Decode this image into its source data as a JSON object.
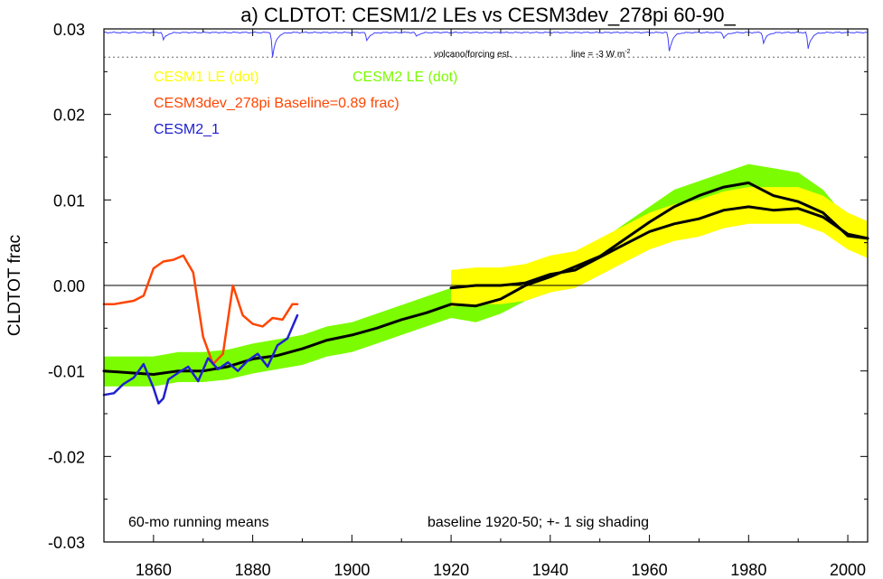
{
  "chart_data": {
    "type": "line",
    "title": "a) CLDTOT: CESM1/2 LEs vs CESM3dev_278pi 60-90_",
    "ylabel": "CLDTOT frac",
    "xlim": [
      1850,
      2004
    ],
    "ylim": [
      -0.03,
      0.03
    ],
    "xticks": [
      1860,
      1880,
      1900,
      1920,
      1940,
      1960,
      1980,
      2000
    ],
    "yticks": [
      -0.03,
      -0.02,
      -0.01,
      0.0,
      0.01,
      0.02,
      0.03
    ],
    "ytick_labels": [
      "-0.03",
      "-0.02",
      "-0.01",
      "0.00",
      "0.01",
      "0.02",
      "0.03"
    ],
    "legend": {
      "cesm1": "CESM1 LE (dot)",
      "cesm2": "CESM2 LE (dot)",
      "cesm3": "CESM3dev_278pi Baseline=0.89 frac)",
      "cesm21": "CESM2_1"
    },
    "annotations": {
      "volcano": "volcano/forcing est.",
      "line_label": "line = -3 W m",
      "line_sup": "-2",
      "running": "60-mo running means",
      "baseline": "baseline 1920-50; +- 1 sig shading"
    },
    "colors": {
      "cesm1": "#ffff00",
      "cesm2": "#7cfc00",
      "cesm3": "#ff4500",
      "cesm21": "#2020d0",
      "mean": "#000000",
      "volcano": "#4040ff"
    },
    "volcano_reference_y": 0.0267,
    "volcano_events": [
      [
        1862,
        0.9
      ],
      [
        1884,
        3.0
      ],
      [
        1903,
        1.0
      ],
      [
        1913,
        0.5
      ],
      [
        1964,
        2.3
      ],
      [
        1975,
        0.7
      ],
      [
        1983,
        1.3
      ],
      [
        1992,
        2.0
      ]
    ],
    "series": [
      {
        "name": "CESM2 LE",
        "kind": "band",
        "x": [
          1850,
          1855,
          1860,
          1865,
          1870,
          1875,
          1880,
          1885,
          1890,
          1895,
          1900,
          1905,
          1910,
          1915,
          1920,
          1925,
          1930,
          1935,
          1940,
          1945,
          1950,
          1955,
          1960,
          1965,
          1970,
          1975,
          1980,
          1985,
          1990,
          1995,
          2000,
          2004
        ],
        "lower": [
          -0.0118,
          -0.0118,
          -0.0118,
          -0.0113,
          -0.0113,
          -0.011,
          -0.0103,
          -0.0098,
          -0.0093,
          -0.0083,
          -0.0078,
          -0.0068,
          -0.0058,
          -0.0048,
          -0.0038,
          -0.0043,
          -0.0033,
          -0.0018,
          -0.0008,
          0.0002,
          0.0017,
          0.0037,
          0.0057,
          0.0077,
          0.0087,
          0.0097,
          0.0107,
          0.0102,
          0.0097,
          0.0077,
          0.0042,
          0.0037
        ],
        "upper": [
          -0.0083,
          -0.0083,
          -0.0083,
          -0.0078,
          -0.0078,
          -0.0075,
          -0.0068,
          -0.0063,
          -0.0058,
          -0.0048,
          -0.0043,
          -0.0033,
          -0.0023,
          -0.0013,
          -0.0003,
          -0.0008,
          0.0002,
          0.0017,
          0.0027,
          0.0037,
          0.0052,
          0.0072,
          0.0092,
          0.0112,
          0.0122,
          0.0132,
          0.0142,
          0.0137,
          0.0132,
          0.0112,
          0.0077,
          0.0072
        ]
      },
      {
        "name": "CESM1 LE",
        "kind": "band",
        "x": [
          1920,
          1925,
          1930,
          1935,
          1940,
          1945,
          1950,
          1955,
          1960,
          1965,
          1970,
          1975,
          1980,
          1985,
          1990,
          1995,
          2000,
          2004
        ],
        "lower": [
          -0.0025,
          -0.0022,
          -0.0022,
          -0.0018,
          -0.0008,
          -0.0003,
          0.0012,
          0.0027,
          0.0042,
          0.0052,
          0.0057,
          0.0067,
          0.0072,
          0.0072,
          0.0072,
          0.0062,
          0.0042,
          0.0032
        ],
        "upper": [
          0.0018,
          0.0021,
          0.0021,
          0.0025,
          0.0035,
          0.004,
          0.0055,
          0.007,
          0.0085,
          0.0095,
          0.01,
          0.011,
          0.0115,
          0.0115,
          0.0115,
          0.0105,
          0.0085,
          0.0075
        ]
      },
      {
        "name": "CESM2 LE mean",
        "kind": "line",
        "x": [
          1850,
          1855,
          1860,
          1865,
          1870,
          1875,
          1880,
          1885,
          1890,
          1895,
          1900,
          1905,
          1910,
          1915,
          1920,
          1925,
          1930,
          1935,
          1940,
          1945,
          1950,
          1955,
          1960,
          1965,
          1970,
          1975,
          1980,
          1985,
          1990,
          1995,
          2000,
          2004
        ],
        "values": [
          -0.01,
          -0.0102,
          -0.0104,
          -0.01,
          -0.01,
          -0.0095,
          -0.0086,
          -0.0082,
          -0.0074,
          -0.0064,
          -0.0058,
          -0.005,
          -0.004,
          -0.0032,
          -0.0022,
          -0.0024,
          -0.0016,
          0.0,
          0.001,
          0.0022,
          0.0034,
          0.0054,
          0.0074,
          0.0092,
          0.0105,
          0.0115,
          0.012,
          0.0105,
          0.0098,
          0.0085,
          0.0058,
          0.0055
        ]
      },
      {
        "name": "CESM1 LE mean",
        "kind": "line",
        "x": [
          1920,
          1925,
          1930,
          1935,
          1940,
          1945,
          1950,
          1955,
          1960,
          1965,
          1970,
          1975,
          1980,
          1985,
          1990,
          1995,
          2000,
          2004
        ],
        "values": [
          -0.0003,
          0.0,
          0.0,
          0.0003,
          0.0013,
          0.0018,
          0.0033,
          0.0048,
          0.0063,
          0.0072,
          0.0078,
          0.0088,
          0.0092,
          0.0088,
          0.009,
          0.008,
          0.006,
          0.0055
        ]
      },
      {
        "name": "CESM3dev_278pi",
        "kind": "line",
        "x": [
          1850,
          1852,
          1854,
          1856,
          1858,
          1860,
          1862,
          1864,
          1866,
          1868,
          1870,
          1872,
          1874,
          1876,
          1878,
          1880,
          1882,
          1884,
          1886,
          1888,
          1889
        ],
        "values": [
          -0.0022,
          -0.0022,
          -0.002,
          -0.0018,
          -0.0012,
          0.002,
          0.0028,
          0.003,
          0.0035,
          0.0015,
          -0.006,
          -0.0092,
          -0.008,
          0.0,
          -0.0035,
          -0.0045,
          -0.0048,
          -0.0038,
          -0.004,
          -0.0022,
          -0.0022
        ]
      },
      {
        "name": "CESM2_1",
        "kind": "line",
        "x": [
          1850,
          1852,
          1854,
          1856,
          1858,
          1860,
          1861,
          1862,
          1863,
          1865,
          1867,
          1869,
          1871,
          1873,
          1875,
          1877,
          1879,
          1881,
          1883,
          1885,
          1887,
          1889
        ],
        "values": [
          -0.0128,
          -0.0126,
          -0.0115,
          -0.0108,
          -0.0092,
          -0.012,
          -0.0138,
          -0.0132,
          -0.011,
          -0.0102,
          -0.0095,
          -0.0112,
          -0.0085,
          -0.0098,
          -0.009,
          -0.01,
          -0.0088,
          -0.008,
          -0.0095,
          -0.007,
          -0.0062,
          -0.0035
        ]
      }
    ]
  }
}
